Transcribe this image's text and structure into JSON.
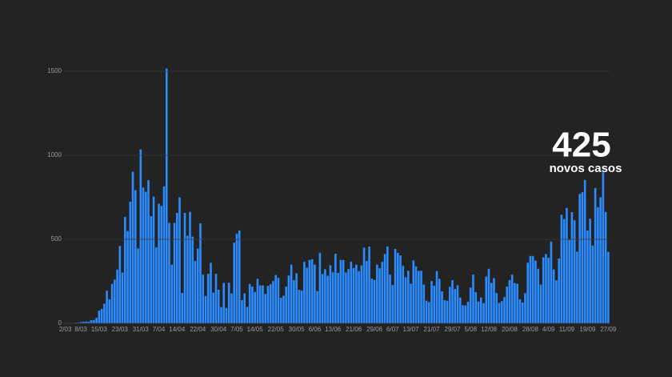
{
  "chart_data": {
    "type": "bar",
    "color": "#2b8cff",
    "grid": true,
    "ylim": [
      0,
      1500
    ],
    "yticks": [
      0,
      500,
      1000,
      1500
    ],
    "annotation": {
      "number": 425,
      "text": "novos casos"
    },
    "categories": [
      "2/03",
      null,
      null,
      null,
      null,
      null,
      "8/03",
      null,
      null,
      null,
      null,
      null,
      null,
      "15/03",
      null,
      null,
      null,
      null,
      null,
      null,
      null,
      "23/03",
      null,
      null,
      null,
      null,
      null,
      null,
      null,
      "31/03",
      null,
      null,
      null,
      null,
      null,
      null,
      "7/04",
      null,
      null,
      null,
      null,
      null,
      null,
      "14/04",
      null,
      null,
      null,
      null,
      null,
      null,
      null,
      "22/04",
      null,
      null,
      null,
      null,
      null,
      null,
      null,
      "30/04",
      null,
      null,
      null,
      null,
      null,
      null,
      "7/05",
      null,
      null,
      null,
      null,
      null,
      null,
      "14/05",
      null,
      null,
      null,
      null,
      null,
      null,
      null,
      "22/05",
      null,
      null,
      null,
      null,
      null,
      null,
      null,
      "30/05",
      null,
      null,
      null,
      null,
      null,
      null,
      "6/06",
      null,
      null,
      null,
      null,
      null,
      null,
      "13/06",
      null,
      null,
      null,
      null,
      null,
      null,
      null,
      "21/06",
      null,
      null,
      null,
      null,
      null,
      null,
      null,
      "29/06",
      null,
      null,
      null,
      null,
      null,
      null,
      "6/07",
      null,
      null,
      null,
      null,
      null,
      null,
      "13/07",
      null,
      null,
      null,
      null,
      null,
      null,
      null,
      "21/07",
      null,
      null,
      null,
      null,
      null,
      null,
      null,
      "29/07",
      null,
      null,
      null,
      null,
      null,
      null,
      "5/08",
      null,
      null,
      null,
      null,
      null,
      null,
      "12/08",
      null,
      null,
      null,
      null,
      null,
      null,
      null,
      "20/08",
      null,
      null,
      null,
      null,
      null,
      null,
      null,
      "28/08",
      null,
      null,
      null,
      null,
      null,
      null,
      "4/09",
      null,
      null,
      null,
      null,
      null,
      null,
      "11/09",
      null,
      null,
      null,
      null,
      null,
      null,
      null,
      "19/09",
      null,
      null,
      null,
      null,
      null,
      null,
      null,
      "27/09"
    ],
    "values": [
      2,
      0,
      2,
      0,
      4,
      4,
      8,
      9,
      11,
      10,
      19,
      20,
      33,
      75,
      86,
      117,
      194,
      143,
      235,
      260,
      320,
      460,
      302,
      633,
      549,
      724,
      902,
      792,
      446,
      1035,
      808,
      783,
      852,
      638,
      754,
      452,
      712,
      699,
      815,
      1516,
      598,
      349,
      598,
      657,
      750,
      181,
      657,
      521,
      663,
      516,
      371,
      445,
      595,
      290,
      163,
      295,
      360,
      183,
      295,
      200,
      97,
      241,
      92,
      242,
      178,
      480,
      533,
      553,
      138,
      178,
      98,
      234,
      219,
      187,
      265,
      226,
      226,
      175,
      223,
      233,
      252,
      288,
      271,
      152,
      165,
      219,
      285,
      350,
      257,
      298,
      200,
      195,
      366,
      331,
      377,
      382,
      350,
      192,
      420,
      294,
      322,
      283,
      346,
      304,
      414,
      300,
      377,
      377,
      303,
      323,
      367,
      329,
      350,
      311,
      345,
      451,
      371,
      457,
      266,
      259,
      350,
      328,
      366,
      413,
      458,
      290,
      228,
      443,
      420,
      404,
      342,
      274,
      313,
      236,
      375,
      339,
      312,
      313,
      231,
      135,
      127,
      252,
      224,
      312,
      265,
      191,
      138,
      135,
      217,
      257,
      205,
      226,
      154,
      108,
      106,
      129,
      213,
      290,
      186,
      130,
      154,
      120,
      279,
      325,
      241,
      269,
      180,
      122,
      132,
      156,
      219,
      258,
      290,
      240,
      236,
      143,
      124,
      180,
      361,
      401,
      401,
      373,
      325,
      231,
      393,
      412,
      390,
      487,
      321,
      256,
      386,
      646,
      620,
      687,
      497,
      662,
      613,
      427,
      770,
      780,
      853,
      552,
      623,
      463,
      805,
      691,
      750,
      899,
      663,
      425
    ]
  }
}
